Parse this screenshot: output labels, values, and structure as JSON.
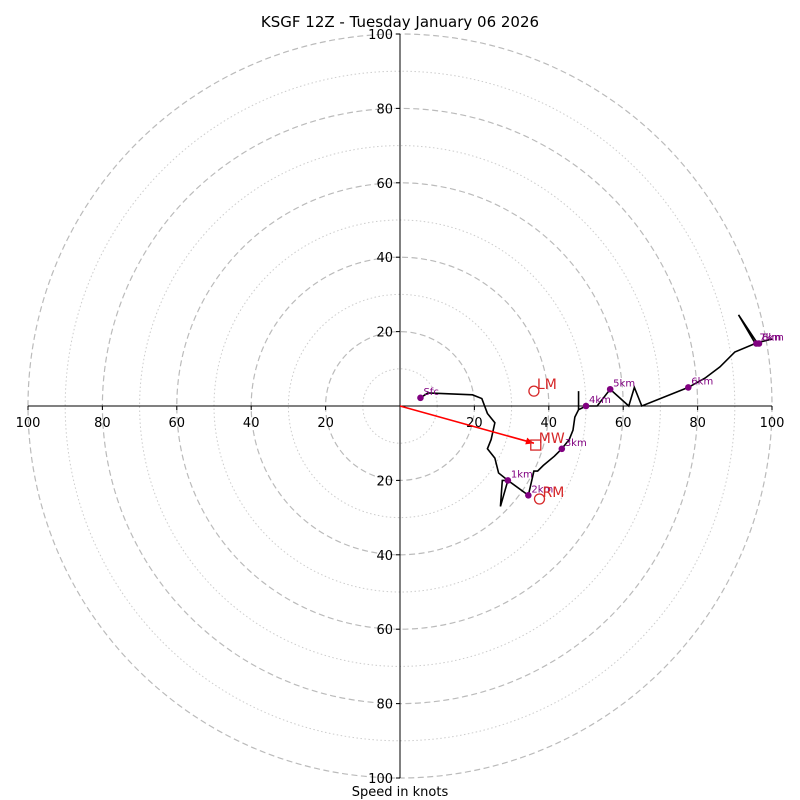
{
  "chart_data": {
    "type": "scatter",
    "subtype": "hodograph",
    "title": "KSGF 12Z - Tuesday January 06 2026",
    "xlabel": "Speed in knots",
    "ylabel": "",
    "range_knots": [
      0,
      100
    ],
    "rings_major": [
      20,
      40,
      60,
      80,
      100
    ],
    "rings_minor": [
      10,
      30,
      50,
      70,
      90
    ],
    "x_tick_labels": [
      "100",
      "80",
      "60",
      "40",
      "20",
      "20",
      "40",
      "60",
      "80",
      "100"
    ],
    "y_tick_labels": [
      "100",
      "80",
      "60",
      "40",
      "20",
      "20",
      "40",
      "60",
      "80",
      "100"
    ],
    "grid": true,
    "colors": {
      "trace": "#000000",
      "height_marker": "#800080",
      "motion": "#d62728",
      "mean_wind_arrow": "#ff0000",
      "grid": "#bbbbbb"
    },
    "trace": [
      [
        5.5,
        2.2
      ],
      [
        7.5,
        3.5
      ],
      [
        19.5,
        3.0
      ],
      [
        22,
        2.0
      ],
      [
        23.5,
        -2.0
      ],
      [
        25.5,
        -4.5
      ],
      [
        24.5,
        -9.0
      ],
      [
        23.5,
        -11.5
      ],
      [
        25.5,
        -14.0
      ],
      [
        26.5,
        -18.0
      ],
      [
        29.0,
        -20.0
      ],
      [
        27.5,
        -20.0
      ],
      [
        27.0,
        -27.0
      ],
      [
        29.0,
        -20.0
      ],
      [
        34.5,
        -24.0
      ],
      [
        36.0,
        -17.5
      ],
      [
        37.0,
        -17.5
      ],
      [
        38.5,
        -16.0
      ],
      [
        41.5,
        -13.5
      ],
      [
        43.5,
        -11.5
      ],
      [
        45.5,
        -9.0
      ],
      [
        46.5,
        -6.5
      ],
      [
        47.0,
        -3.0
      ],
      [
        48.0,
        -1.0
      ],
      [
        48.0,
        4.0
      ],
      [
        48.0,
        -1.0
      ],
      [
        50.0,
        0.0
      ],
      [
        53.0,
        0.0
      ],
      [
        56.5,
        4.5
      ],
      [
        61.5,
        0.0
      ],
      [
        63.0,
        5.0
      ],
      [
        65.0,
        0.0
      ],
      [
        77.5,
        5.0
      ],
      [
        82.0,
        7.5
      ],
      [
        86.0,
        10.5
      ],
      [
        90.0,
        14.5
      ],
      [
        95.5,
        16.8
      ],
      [
        91.0,
        24.5
      ],
      [
        96.0,
        17.0
      ],
      [
        100.0,
        18.0
      ]
    ],
    "height_markers": [
      {
        "label": "Sfc",
        "u": 5.5,
        "v": 2.2
      },
      {
        "label": "1km",
        "u": 29.0,
        "v": -20.0
      },
      {
        "label": "2km",
        "u": 34.5,
        "v": -24.0
      },
      {
        "label": "3km",
        "u": 43.5,
        "v": -11.5
      },
      {
        "label": "4km",
        "u": 50.0,
        "v": 0.0
      },
      {
        "label": "5km",
        "u": 56.5,
        "v": 4.5
      },
      {
        "label": "6km",
        "u": 77.5,
        "v": 5.0
      },
      {
        "label": "7km",
        "u": 95.8,
        "v": 16.8
      },
      {
        "label": "8km",
        "u": 96.5,
        "v": 16.8
      }
    ],
    "storm_motions": [
      {
        "label": "LM",
        "u": 36.0,
        "v": 4.0,
        "marker": "circle"
      },
      {
        "label": "RM",
        "u": 37.5,
        "v": -25.0,
        "marker": "circle"
      },
      {
        "label": "MW",
        "u": 36.5,
        "v": -10.5,
        "marker": "square"
      }
    ],
    "mean_wind_vector": {
      "from": [
        0,
        0
      ],
      "to": [
        36.0,
        -10.0
      ]
    }
  }
}
